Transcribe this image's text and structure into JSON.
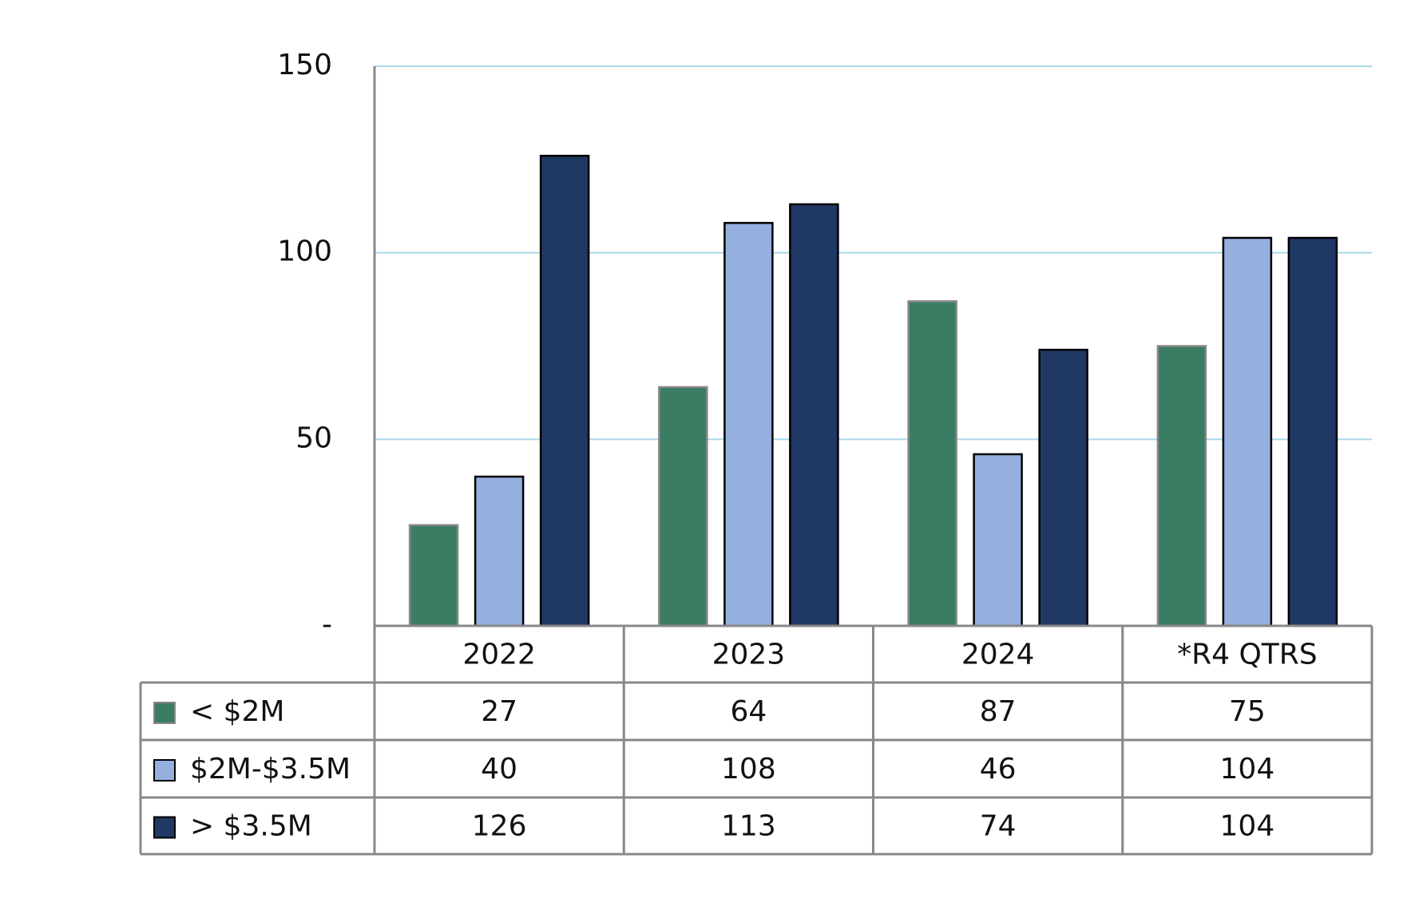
{
  "chart_data": {
    "type": "bar",
    "categories": [
      "2022",
      "2023",
      "2024",
      "*R4 QTRS"
    ],
    "series": [
      {
        "name": "< $2M",
        "color": "#3a7d62",
        "values": [
          27,
          64,
          87,
          75
        ]
      },
      {
        "name": "$2M-$3.5M",
        "color": "#95b0de",
        "values": [
          40,
          108,
          46,
          104
        ]
      },
      {
        "name": "> $3.5M",
        "color": "#203864",
        "values": [
          126,
          113,
          74,
          104
        ]
      }
    ],
    "ylim": [
      0,
      150
    ],
    "yticks": [
      {
        "value": 0,
        "label": "-"
      },
      50,
      100,
      150
    ],
    "grid": true
  }
}
